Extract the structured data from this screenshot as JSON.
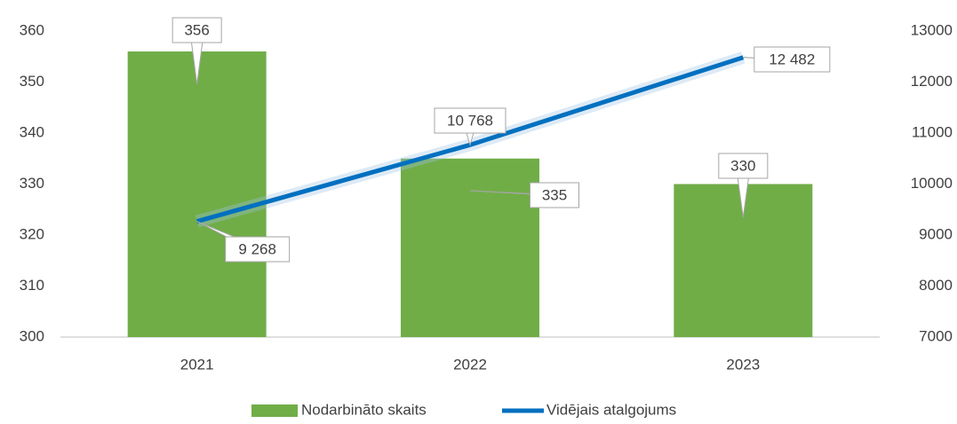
{
  "chart_data": {
    "type": "bar_line",
    "categories": [
      "2021",
      "2022",
      "2023"
    ],
    "series": [
      {
        "name": "Nodarbināto skaits",
        "color": "#70ad47",
        "type": "bar",
        "values": [
          356,
          335,
          330
        ]
      },
      {
        "name": "Vidējais atalgojums",
        "color": "#0070c0",
        "type": "line",
        "axis": "y2",
        "values": [
          9268,
          10768,
          12482
        ],
        "value_labels": [
          "9 268",
          "10 768",
          "12 482"
        ]
      }
    ],
    "ylim": [
      300,
      360
    ],
    "yticks": [
      300,
      310,
      320,
      330,
      340,
      350,
      360
    ],
    "y2lim": [
      7000,
      13000
    ],
    "y2ticks": [
      7000,
      8000,
      9000,
      10000,
      11000,
      12000,
      13000
    ],
    "legend": "bottom"
  }
}
